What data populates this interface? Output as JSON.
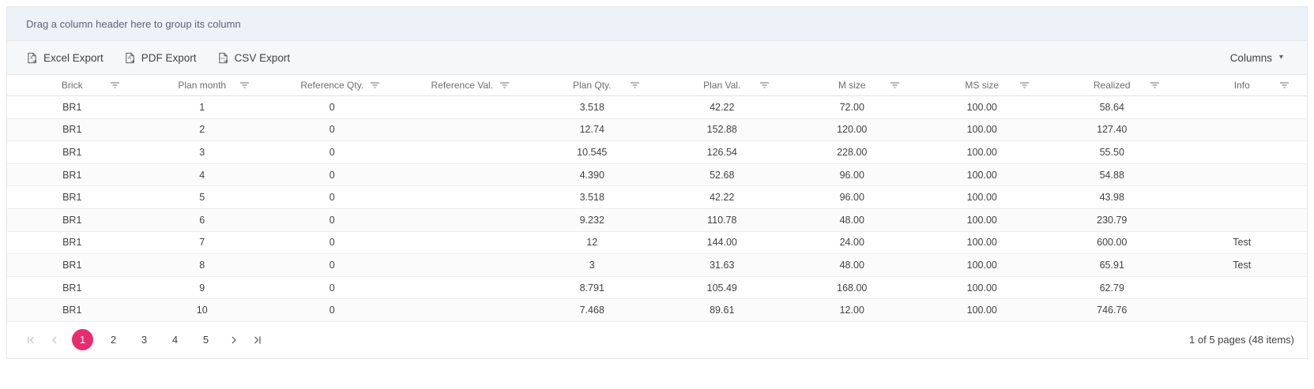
{
  "group_panel": {
    "text": "Drag a column header here to group its column"
  },
  "toolbar": {
    "excel_label": "Excel Export",
    "pdf_label": "PDF Export",
    "csv_label": "CSV Export",
    "columns_label": "Columns"
  },
  "grid": {
    "columns": [
      "Brick",
      "Plan month",
      "Reference Qty.",
      "Reference Val.",
      "Plan Qty.",
      "Plan Val.",
      "M size",
      "MS size",
      "Realized",
      "Info"
    ],
    "rows": [
      [
        "BR1",
        "1",
        "0",
        "",
        "3.518",
        "42.22",
        "72.00",
        "100.00",
        "58.64",
        ""
      ],
      [
        "BR1",
        "2",
        "0",
        "",
        "12.74",
        "152.88",
        "120.00",
        "100.00",
        "127.40",
        ""
      ],
      [
        "BR1",
        "3",
        "0",
        "",
        "10.545",
        "126.54",
        "228.00",
        "100.00",
        "55.50",
        ""
      ],
      [
        "BR1",
        "4",
        "0",
        "",
        "4.390",
        "52.68",
        "96.00",
        "100.00",
        "54.88",
        ""
      ],
      [
        "BR1",
        "5",
        "0",
        "",
        "3.518",
        "42.22",
        "96.00",
        "100.00",
        "43.98",
        ""
      ],
      [
        "BR1",
        "6",
        "0",
        "",
        "9.232",
        "110.78",
        "48.00",
        "100.00",
        "230.79",
        ""
      ],
      [
        "BR1",
        "7",
        "0",
        "",
        "12",
        "144.00",
        "24.00",
        "100.00",
        "600.00",
        "Test"
      ],
      [
        "BR1",
        "8",
        "0",
        "",
        "3",
        "31.63",
        "48.00",
        "100.00",
        "65.91",
        "Test"
      ],
      [
        "BR1",
        "9",
        "0",
        "",
        "8.791",
        "105.49",
        "168.00",
        "100.00",
        "62.79",
        ""
      ],
      [
        "BR1",
        "10",
        "0",
        "",
        "7.468",
        "89.61",
        "12.00",
        "100.00",
        "746.76",
        ""
      ]
    ]
  },
  "pager": {
    "pages": [
      "1",
      "2",
      "3",
      "4",
      "5"
    ],
    "active_page": "1",
    "info": "1 of 5 pages (48 items)"
  },
  "colors": {
    "accent": "#e62d6e"
  }
}
